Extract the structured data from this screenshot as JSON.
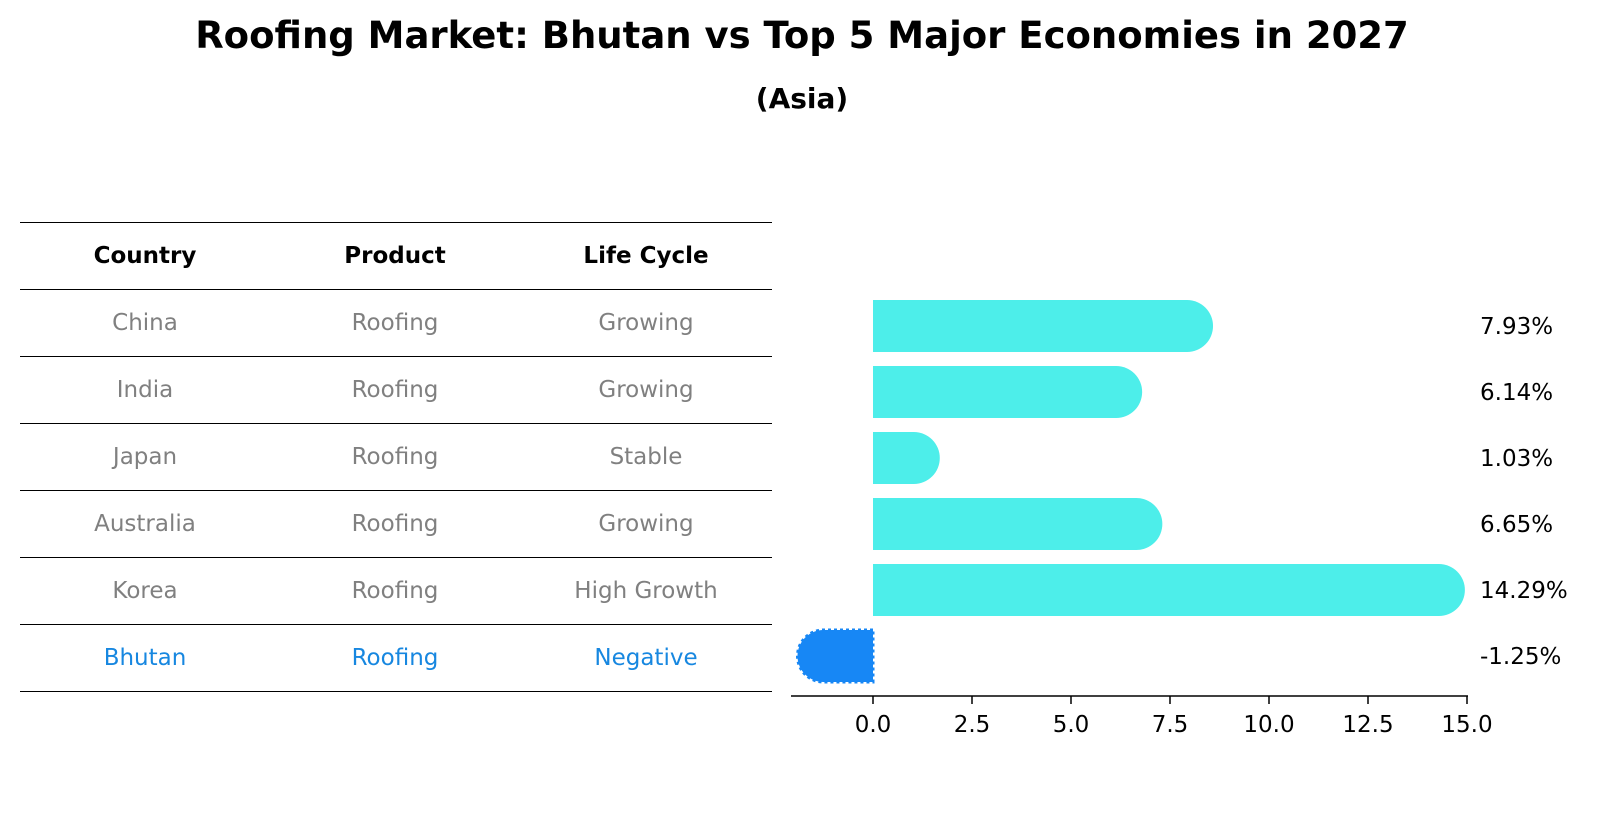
{
  "title": "Roofing Market: Bhutan vs Top 5 Major Economies in 2027",
  "subtitle": "(Asia)",
  "table": {
    "headers": [
      "Country",
      "Product",
      "Life Cycle"
    ],
    "rows": [
      [
        "China",
        "Roofing",
        "Growing"
      ],
      [
        "India",
        "Roofing",
        "Growing"
      ],
      [
        "Japan",
        "Roofing",
        "Stable"
      ],
      [
        "Australia",
        "Roofing",
        "Growing"
      ],
      [
        "Korea",
        "Roofing",
        "High Growth"
      ],
      [
        "Bhutan",
        "Roofing",
        "Negative"
      ]
    ],
    "highlight_row": 5,
    "text_color": "#808080",
    "highlight_color": "#1787e0"
  },
  "chart_data": {
    "type": "bar",
    "orientation": "horizontal",
    "categories": [
      "China",
      "India",
      "Japan",
      "Australia",
      "Korea",
      "Bhutan"
    ],
    "values": [
      7.93,
      6.14,
      1.03,
      6.65,
      14.29,
      -1.25
    ],
    "value_labels": [
      "7.93%",
      "6.14%",
      "1.03%",
      "6.65%",
      "14.29%",
      "-1.25%"
    ],
    "xlim": [
      -2.0,
      15.0
    ],
    "xticks": [
      0.0,
      2.5,
      5.0,
      7.5,
      10.0,
      12.5,
      15.0
    ],
    "xtick_labels": [
      "0.0",
      "2.5",
      "5.0",
      "7.5",
      "10.0",
      "12.5",
      "15.0"
    ],
    "bar_color": "#4deeea",
    "highlight_color": "#1787f5",
    "highlight_index": 5,
    "title": "Roofing Market: Bhutan vs Top 5 Major Economies in 2027",
    "xlabel": "",
    "ylabel": ""
  }
}
